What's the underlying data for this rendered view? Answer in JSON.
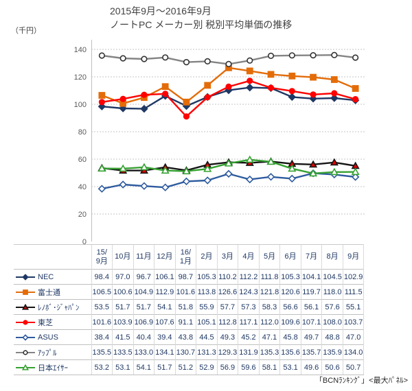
{
  "title_line1": "2015年9月～2016年9月",
  "title_line2": "ノートPC メーカー別 税別平均単価の推移",
  "axis_unit": "（千円）",
  "footer": "「BCNﾗﾝｷﾝｸﾞ」<最大ﾊﾟﾈﾙ>",
  "colors": {
    "grid": "#C6C6C6",
    "axis": "#BFBFBF",
    "tick_text": "#595959",
    "table_text": "#1F3864",
    "title_text": "#3f3f3f"
  },
  "chart_data": {
    "type": "line",
    "title": "2015年9月～2016年9月 ノートPC メーカー別 税別平均単価の推移",
    "ylabel": "（千円）",
    "ylim": [
      0,
      140
    ],
    "ytick_step": 20,
    "grid": "horizontal-dotted",
    "legend_position": "table-left-column",
    "categories": [
      "15/9月",
      "10月",
      "11月",
      "12月",
      "16/1月",
      "2月",
      "3月",
      "4月",
      "5月",
      "6月",
      "7月",
      "8月",
      "9月"
    ],
    "categories_display": [
      [
        "15/",
        "9月"
      ],
      [
        "10月"
      ],
      [
        "11月"
      ],
      [
        "12月"
      ],
      [
        "16/",
        "1月"
      ],
      [
        "2月"
      ],
      [
        "3月"
      ],
      [
        "4月"
      ],
      [
        "5月"
      ],
      [
        "6月"
      ],
      [
        "7月"
      ],
      [
        "8月"
      ],
      [
        "9月"
      ]
    ],
    "series": [
      {
        "name": "NEC",
        "color": "#1F3864",
        "marker": "diamond",
        "marker_fill": "#1F3864",
        "marker_stroke": "#1F3864",
        "values": [
          98.4,
          97.0,
          96.7,
          106.1,
          98.7,
          105.3,
          110.2,
          112.2,
          111.8,
          105.3,
          104.1,
          104.5,
          102.9
        ]
      },
      {
        "name": "富士通",
        "color": "#E36C09",
        "marker": "square",
        "marker_fill": "#E36C09",
        "marker_stroke": "#E36C09",
        "values": [
          106.5,
          100.6,
          104.9,
          112.9,
          101.6,
          113.8,
          126.6,
          124.3,
          121.8,
          120.6,
          119.7,
          118.0,
          111.5
        ]
      },
      {
        "name": "ﾚﾉﾎﾞ･ｼﾞｬﾊﾟﾝ",
        "color": "#151515",
        "marker": "triangle",
        "marker_fill": "#E00000",
        "marker_stroke": "#151515",
        "values": [
          53.5,
          51.7,
          51.7,
          54.1,
          51.8,
          55.9,
          57.7,
          57.3,
          58.3,
          56.6,
          56.1,
          57.6,
          55.1
        ]
      },
      {
        "name": "東芝",
        "color": "#FF0000",
        "marker": "circle",
        "marker_fill": "#FF0000",
        "marker_stroke": "#FF0000",
        "values": [
          101.6,
          103.9,
          106.9,
          107.6,
          91.1,
          105.1,
          112.8,
          117.1,
          112.0,
          109.6,
          107.1,
          108.0,
          103.7
        ]
      },
      {
        "name": "ASUS",
        "color": "#2E5B9F",
        "marker": "diamond-open",
        "marker_fill": "#FFFFFF",
        "marker_stroke": "#2E5B9F",
        "values": [
          38.4,
          41.5,
          40.4,
          39.4,
          43.8,
          44.5,
          49.3,
          45.2,
          47.1,
          45.8,
          49.7,
          48.8,
          47.0
        ]
      },
      {
        "name": "ｱｯﾌﾟﾙ",
        "color": "#848484",
        "marker": "circle-open",
        "marker_fill": "#FFFFFF",
        "marker_stroke": "#333333",
        "values": [
          135.5,
          133.5,
          133.0,
          134.1,
          130.7,
          131.3,
          129.3,
          131.9,
          135.3,
          135.6,
          135.7,
          135.9,
          134.0
        ]
      },
      {
        "name": "日本ｴｲｻｰ",
        "color": "#36A132",
        "marker": "triangle-open",
        "marker_fill": "#FFFFFF",
        "marker_stroke": "#36A132",
        "values": [
          53.2,
          53.1,
          54.1,
          51.7,
          51.2,
          52.9,
          56.9,
          59.6,
          58.1,
          53.1,
          49.6,
          50.6,
          50.7
        ]
      }
    ]
  }
}
